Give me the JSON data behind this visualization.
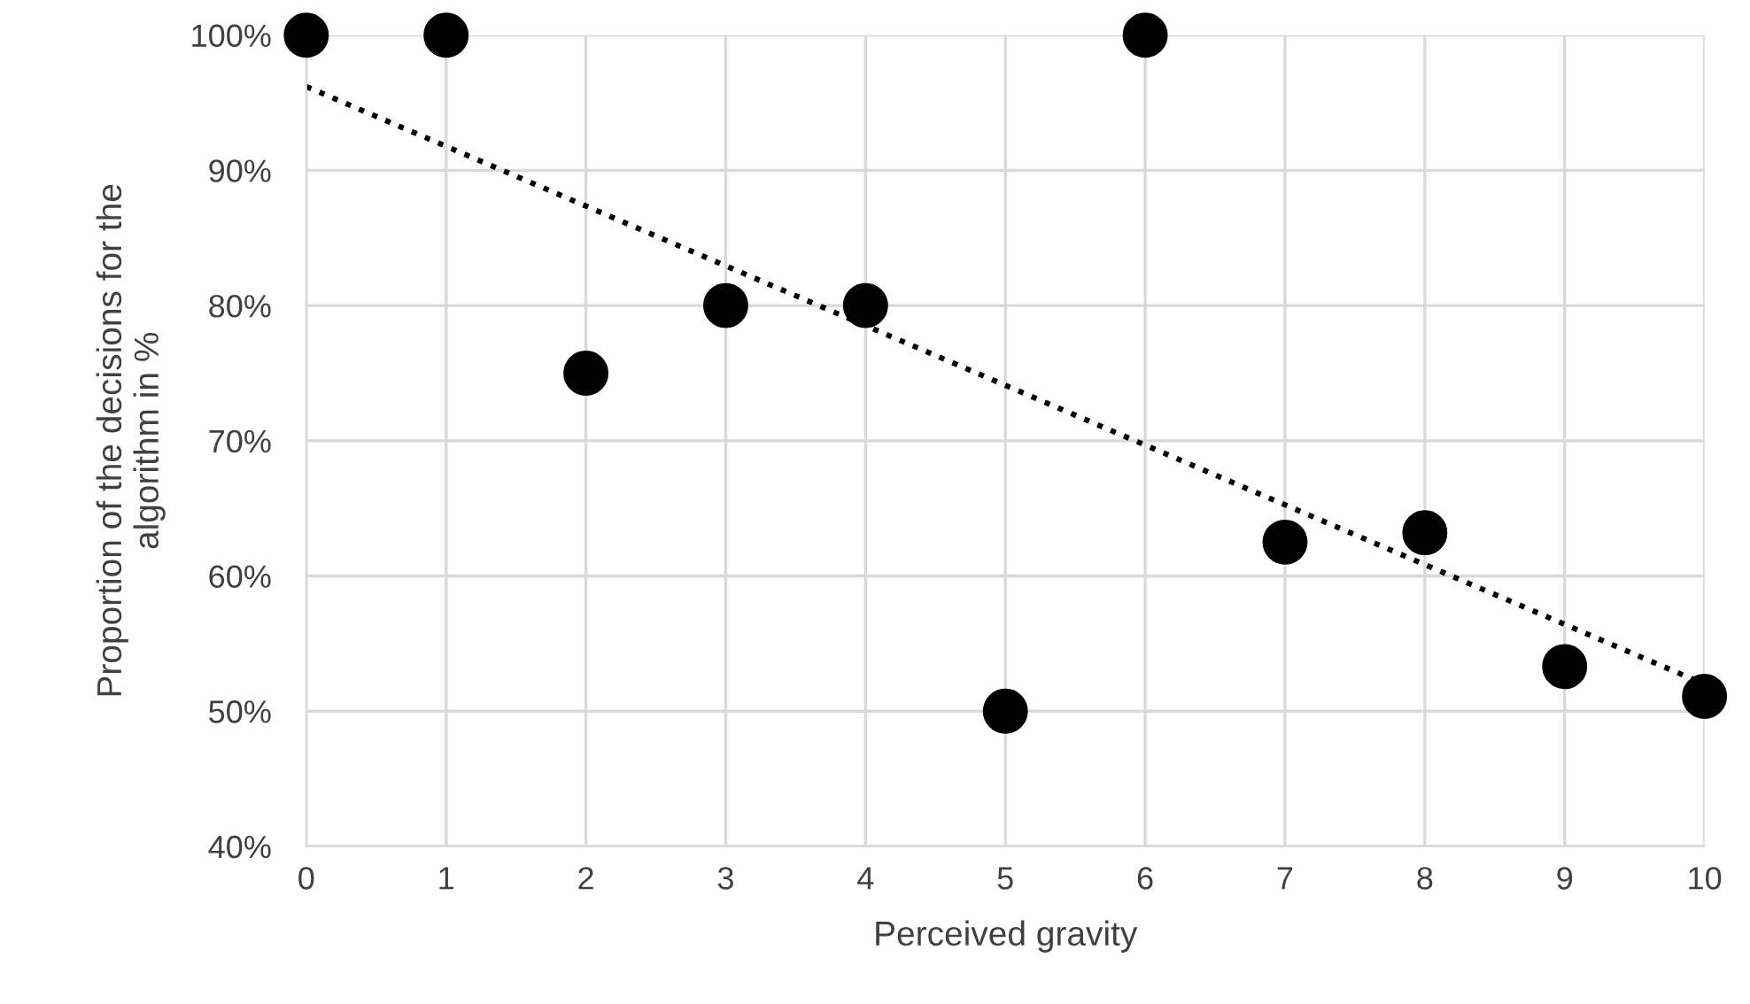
{
  "chart_data": {
    "type": "scatter",
    "xlabel": "Perceived gravity",
    "ylabel": "Proportion of the decisions for the\nalgorithm in %",
    "series": [
      {
        "color": "#000000",
        "x": [
          0,
          1,
          2,
          3,
          4,
          5,
          6,
          7,
          8,
          9,
          10
        ],
        "values": [
          100,
          100,
          75,
          80,
          80,
          50,
          100,
          62.5,
          63.2,
          53.3,
          51.1
        ],
        "marker": "circle"
      },
      {
        "type": "line",
        "color": "#000000",
        "x": [
          0,
          10
        ],
        "values": [
          96.2,
          52.0
        ],
        "line_style": "dotted"
      }
    ],
    "xlim": [
      0,
      10
    ],
    "xticks": [
      0,
      1,
      2,
      3,
      4,
      5,
      6,
      7,
      8,
      9,
      10
    ],
    "ylim": [
      40,
      100
    ],
    "yticks": [
      {
        "value": 40,
        "label": "40%"
      },
      {
        "value": 50,
        "label": "50%"
      },
      {
        "value": 60,
        "label": "60%"
      },
      {
        "value": 70,
        "label": "70%"
      },
      {
        "value": 80,
        "label": "80%"
      },
      {
        "value": 90,
        "label": "90%"
      },
      {
        "value": 100,
        "label": "100%"
      }
    ],
    "grid": true,
    "legend": false
  }
}
